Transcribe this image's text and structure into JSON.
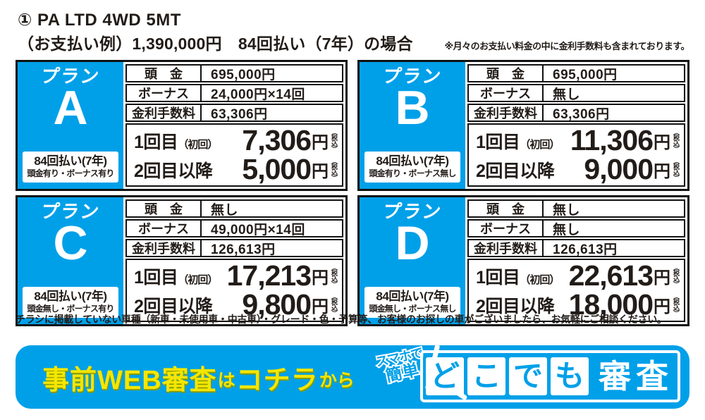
{
  "colors": {
    "brand_blue": "#00a0e9",
    "cta_yellow": "#f5e600",
    "ink": "#221c18"
  },
  "header": {
    "title": "① PA LTD 4WD 5MT",
    "subtitle": "（お支払い例）1,390,000円　84回払い（7年）の場合",
    "note": "※月々のお支払い料金の中に金利手数料も含まれております。"
  },
  "plans": [
    {
      "label_prefix": "プラン",
      "letter": "A",
      "terms_line1": "84回払い(7年)",
      "terms_line2": "頭金有り・ボーナス有り",
      "specs": [
        {
          "label": "頭　金",
          "value": "695,000円"
        },
        {
          "label": "ボーナス",
          "value": "24,000円×14回"
        },
        {
          "label": "金利手数料",
          "value": "63,306円"
        }
      ],
      "payments": [
        {
          "label": "1回目",
          "label_sub": "（初回）",
          "amount": "7,306",
          "unit": "円",
          "tax": "（税込）"
        },
        {
          "label": "2回目以降",
          "label_sub": "",
          "amount": "5,000",
          "unit": "円",
          "tax": "（税込）"
        }
      ]
    },
    {
      "label_prefix": "プラン",
      "letter": "B",
      "terms_line1": "84回払い(7年)",
      "terms_line2": "頭金有り・ボーナス無し",
      "specs": [
        {
          "label": "頭　金",
          "value": "695,000円"
        },
        {
          "label": "ボーナス",
          "value": "無し"
        },
        {
          "label": "金利手数料",
          "value": "63,306円"
        }
      ],
      "payments": [
        {
          "label": "1回目",
          "label_sub": "（初回）",
          "amount": "11,306",
          "unit": "円",
          "tax": "（税込）"
        },
        {
          "label": "2回目以降",
          "label_sub": "",
          "amount": "9,000",
          "unit": "円",
          "tax": "（税込）"
        }
      ]
    },
    {
      "label_prefix": "プラン",
      "letter": "C",
      "terms_line1": "84回払い(7年)",
      "terms_line2": "頭金無し・ボーナス有り",
      "specs": [
        {
          "label": "頭　金",
          "value": "無し"
        },
        {
          "label": "ボーナス",
          "value": "49,000円×14回"
        },
        {
          "label": "金利手数料",
          "value": "126,613円"
        }
      ],
      "payments": [
        {
          "label": "1回目",
          "label_sub": "（初回）",
          "amount": "17,213",
          "unit": "円",
          "tax": "（税込）"
        },
        {
          "label": "2回目以降",
          "label_sub": "",
          "amount": "9,800",
          "unit": "円",
          "tax": "（税込）"
        }
      ]
    },
    {
      "label_prefix": "プラン",
      "letter": "D",
      "terms_line1": "84回払い(7年)",
      "terms_line2": "頭金無し・ボーナス無し",
      "specs": [
        {
          "label": "頭　金",
          "value": "無し"
        },
        {
          "label": "ボーナス",
          "value": "無し"
        },
        {
          "label": "金利手数料",
          "value": "126,613円"
        }
      ],
      "payments": [
        {
          "label": "1回目",
          "label_sub": "（初回）",
          "amount": "22,613",
          "unit": "円",
          "tax": "（税込）"
        },
        {
          "label": "2回目以降",
          "label_sub": "",
          "amount": "18,000",
          "unit": "円",
          "tax": "（税込）"
        }
      ]
    }
  ],
  "notice": "チラシに掲載していない車種（新車・未使用車・中古車）・グレード・色・予算等、お客様のお探しの車がございましたら、お気軽にご相談ください。",
  "banner": {
    "cta_part1": "事前WEB審査",
    "cta_part2": "は",
    "cta_part3": "コチラ",
    "cta_part4": "から",
    "badge_line1": "スマホで",
    "badge_line2": "簡単",
    "logo_char1": "ど",
    "logo_char2": "こ",
    "logo_char3": "で",
    "logo_char4": "も",
    "logo_suffix": "審査"
  }
}
